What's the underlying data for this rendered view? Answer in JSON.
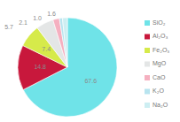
{
  "chart_data": {
    "type": "pie",
    "categories": [
      "SiO₂",
      "Al₂O₃",
      "Fe₂O₃",
      "MgO",
      "CaO",
      "K₂O",
      "Na₂O"
    ],
    "values": [
      67.6,
      14.8,
      7.4,
      5.7,
      2.1,
      1.0,
      1.6
    ],
    "value_labels": [
      "67.6",
      "14.8",
      "7.4",
      "5.7",
      "2.1",
      "1.0",
      "1.6"
    ],
    "colors": [
      "#6fe3e8",
      "#c8183c",
      "#d6ea4a",
      "#e4e6e6",
      "#f5b0c0",
      "#b8e4ef",
      "#cdeef2"
    ],
    "data_labels": true,
    "legend": "right"
  }
}
